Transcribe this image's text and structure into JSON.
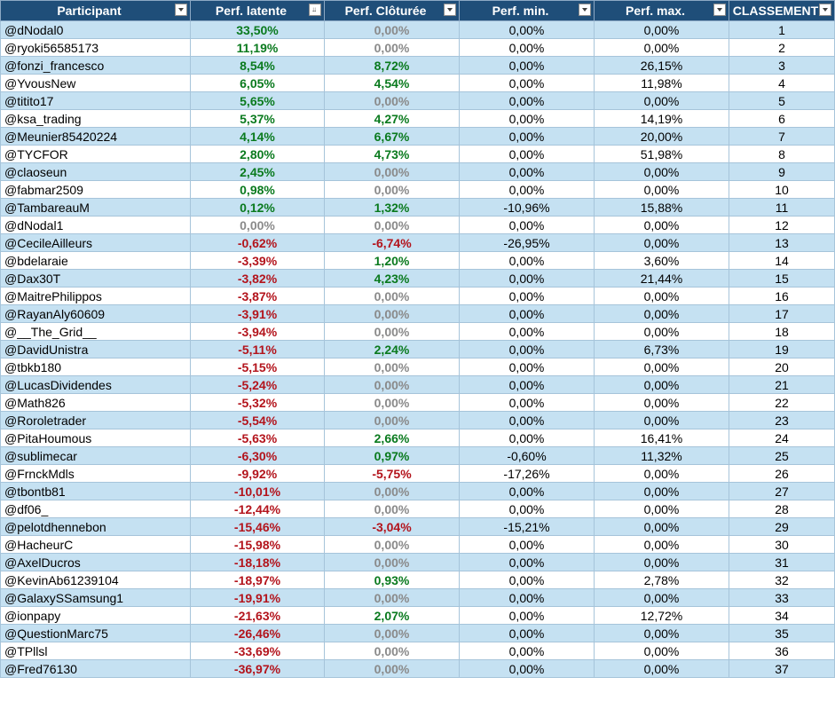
{
  "headers": [
    "Participant",
    "Perf. latente",
    "Perf. Clôturée",
    "Perf. min.",
    "Perf. max.",
    "CLASSEMENT"
  ],
  "rows": [
    [
      "@dNodal0",
      "33,50%",
      "0,00%",
      "0,00%",
      "0,00%",
      "1"
    ],
    [
      "@ryoki56585173",
      "11,19%",
      "0,00%",
      "0,00%",
      "0,00%",
      "2"
    ],
    [
      "@fonzi_francesco",
      "8,54%",
      "8,72%",
      "0,00%",
      "26,15%",
      "3"
    ],
    [
      "@YvousNew",
      "6,05%",
      "4,54%",
      "0,00%",
      "11,98%",
      "4"
    ],
    [
      "@titito17",
      "5,65%",
      "0,00%",
      "0,00%",
      "0,00%",
      "5"
    ],
    [
      "@ksa_trading",
      "5,37%",
      "4,27%",
      "0,00%",
      "14,19%",
      "6"
    ],
    [
      "@Meunier85420224",
      "4,14%",
      "6,67%",
      "0,00%",
      "20,00%",
      "7"
    ],
    [
      "@TYCFOR",
      "2,80%",
      "4,73%",
      "0,00%",
      "51,98%",
      "8"
    ],
    [
      "@claoseun",
      "2,45%",
      "0,00%",
      "0,00%",
      "0,00%",
      "9"
    ],
    [
      "@fabmar2509",
      "0,98%",
      "0,00%",
      "0,00%",
      "0,00%",
      "10"
    ],
    [
      "@TambareauM",
      "0,12%",
      "1,32%",
      "-10,96%",
      "15,88%",
      "11"
    ],
    [
      "@dNodal1",
      "0,00%",
      "0,00%",
      "0,00%",
      "0,00%",
      "12"
    ],
    [
      "@CecileAilleurs",
      "-0,62%",
      "-6,74%",
      "-26,95%",
      "0,00%",
      "13"
    ],
    [
      "@bdelaraie",
      "-3,39%",
      "1,20%",
      "0,00%",
      "3,60%",
      "14"
    ],
    [
      "@Dax30T",
      "-3,82%",
      "4,23%",
      "0,00%",
      "21,44%",
      "15"
    ],
    [
      "@MaitrePhilippos",
      "-3,87%",
      "0,00%",
      "0,00%",
      "0,00%",
      "16"
    ],
    [
      "@RayanAly60609",
      "-3,91%",
      "0,00%",
      "0,00%",
      "0,00%",
      "17"
    ],
    [
      "@__The_Grid__",
      "-3,94%",
      "0,00%",
      "0,00%",
      "0,00%",
      "18"
    ],
    [
      "@DavidUnistra",
      "-5,11%",
      "2,24%",
      "0,00%",
      "6,73%",
      "19"
    ],
    [
      "@tbkb180",
      "-5,15%",
      "0,00%",
      "0,00%",
      "0,00%",
      "20"
    ],
    [
      "@LucasDividendes",
      "-5,24%",
      "0,00%",
      "0,00%",
      "0,00%",
      "21"
    ],
    [
      "@Math826",
      "-5,32%",
      "0,00%",
      "0,00%",
      "0,00%",
      "22"
    ],
    [
      "@Roroletrader",
      "-5,54%",
      "0,00%",
      "0,00%",
      "0,00%",
      "23"
    ],
    [
      "@PitaHoumous",
      "-5,63%",
      "2,66%",
      "0,00%",
      "16,41%",
      "24"
    ],
    [
      "@sublimecar",
      "-6,30%",
      "0,97%",
      "-0,60%",
      "11,32%",
      "25"
    ],
    [
      "@FrnckMdls",
      "-9,92%",
      "-5,75%",
      "-17,26%",
      "0,00%",
      "26"
    ],
    [
      "@tbontb81",
      "-10,01%",
      "0,00%",
      "0,00%",
      "0,00%",
      "27"
    ],
    [
      "@df06_",
      "-12,44%",
      "0,00%",
      "0,00%",
      "0,00%",
      "28"
    ],
    [
      "@pelotdhennebon",
      "-15,46%",
      "-3,04%",
      "-15,21%",
      "0,00%",
      "29"
    ],
    [
      "@HacheurC",
      "-15,98%",
      "0,00%",
      "0,00%",
      "0,00%",
      "30"
    ],
    [
      "@AxelDucros",
      "-18,18%",
      "0,00%",
      "0,00%",
      "0,00%",
      "31"
    ],
    [
      "@KevinAb61239104",
      "-18,97%",
      "0,93%",
      "0,00%",
      "2,78%",
      "32"
    ],
    [
      "@GalaxySSamsung1",
      "-19,91%",
      "0,00%",
      "0,00%",
      "0,00%",
      "33"
    ],
    [
      "@ionpapy",
      "-21,63%",
      "2,07%",
      "0,00%",
      "12,72%",
      "34"
    ],
    [
      "@QuestionMarc75",
      "-26,46%",
      "0,00%",
      "0,00%",
      "0,00%",
      "35"
    ],
    [
      "@TPllsl",
      "-33,69%",
      "0,00%",
      "0,00%",
      "0,00%",
      "36"
    ],
    [
      "@Fred76130",
      "-36,97%",
      "0,00%",
      "0,00%",
      "0,00%",
      "37"
    ]
  ],
  "colors": {
    "header_bg": "#1f4e79",
    "band_bg": "#c5e1f2",
    "positive": "#0a7a1e",
    "negative": "#b3141c",
    "zero": "#8a8a8a"
  },
  "filter_icons": [
    "dropdown-arrow-icon",
    "sort-descending-icon"
  ]
}
